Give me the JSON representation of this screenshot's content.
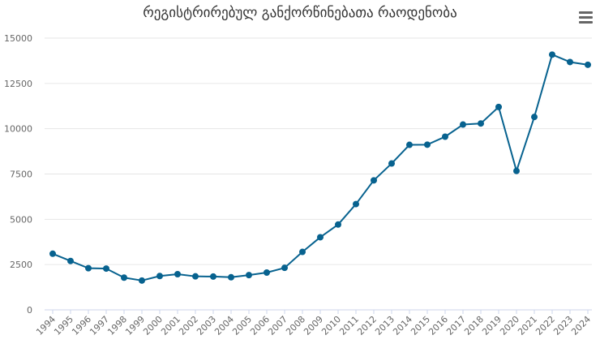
{
  "header": {
    "title": "რეგისტრირებულ განქორწინებათა რაოდენობა",
    "menu_icon": "hamburger-menu-icon"
  },
  "colors": {
    "series": "#07628f",
    "grid": "#e6e6e6",
    "axis": "#ccd6eb",
    "text": "#666666"
  },
  "chart_data": {
    "type": "line",
    "title": "რეგისტრირებულ განქორწინებათა რაოდენობა",
    "xlabel": "",
    "ylabel": "",
    "x": [
      "1994",
      "1995",
      "1996",
      "1997",
      "1998",
      "1999",
      "2000",
      "2001",
      "2002",
      "2003",
      "2004",
      "2005",
      "2006",
      "2007",
      "2008",
      "2009",
      "2010",
      "2011",
      "2012",
      "2013",
      "2014",
      "2015",
      "2016",
      "2017",
      "2018",
      "2019",
      "2020",
      "2021",
      "2022",
      "2023",
      "2024"
    ],
    "series": [
      {
        "values": [
          3100,
          2700,
          2300,
          2280,
          1780,
          1620,
          1870,
          1970,
          1850,
          1840,
          1800,
          1920,
          2060,
          2320,
          3200,
          4010,
          4710,
          5840,
          7150,
          8080,
          9110,
          9120,
          9560,
          10230,
          10290,
          11200,
          7670,
          10650,
          14090,
          13680,
          13530
        ]
      }
    ],
    "yticks": [
      "0",
      "2500",
      "5000",
      "7500",
      "10000",
      "12500",
      "15000"
    ],
    "ylim": [
      0,
      15000
    ],
    "grid": true,
    "legend": "none"
  }
}
